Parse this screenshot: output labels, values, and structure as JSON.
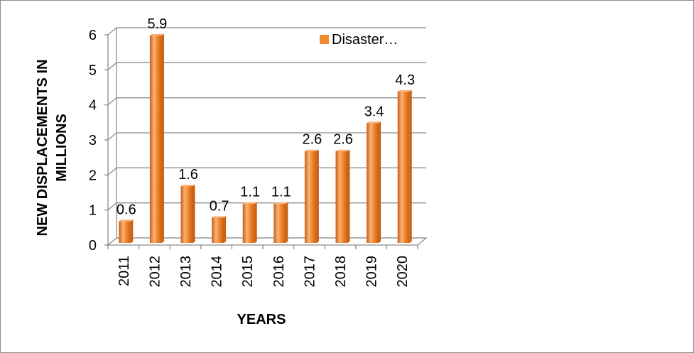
{
  "chart_data": {
    "type": "bar",
    "categories": [
      "2011",
      "2012",
      "2013",
      "2014",
      "2015",
      "2016",
      "2017",
      "2018",
      "2019",
      "2020"
    ],
    "series": [
      {
        "name": "Disaster…",
        "values": [
          0.6,
          5.9,
          1.6,
          0.7,
          1.1,
          1.1,
          2.6,
          2.6,
          3.4,
          4.3
        ]
      }
    ],
    "data_labels": [
      "0.6",
      "5.9",
      "1.6",
      "0.7",
      "1.1",
      "1.1",
      "2.6",
      "2.6",
      "3.4",
      "4.3"
    ],
    "y_ticks": [
      "0",
      "1",
      "2",
      "3",
      "4",
      "5",
      "6"
    ],
    "ylim": [
      0,
      6
    ],
    "xlabel": "YEARS",
    "ylabel_lines": [
      "NEW DISPLACEMENTS IN",
      "MILLIONS"
    ],
    "legend_position": "top-right",
    "grid": true,
    "style": "3d-column",
    "colors": {
      "bar": "#F28A30",
      "bar_dark": "#C85F12",
      "bar_light": "#F9B27A",
      "grid": "#8C8C8C",
      "frame": "#8C8C8C"
    }
  }
}
